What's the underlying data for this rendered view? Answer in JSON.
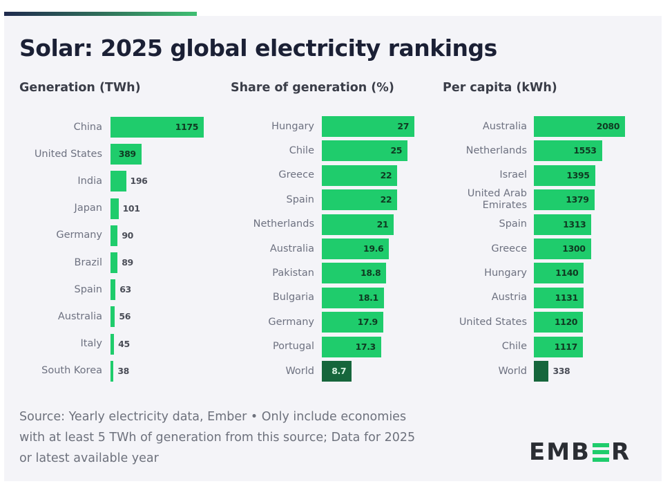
{
  "title": "Solar: 2025 global electricity rankings",
  "colors": {
    "bar": "#1fcc6c",
    "world_bar": "#16663c",
    "title": "#1b2035"
  },
  "chart_data": [
    {
      "type": "bar",
      "orientation": "horizontal",
      "title": "Generation (TWh)",
      "categories": [
        "China",
        "United States",
        "India",
        "Japan",
        "Germany",
        "Brazil",
        "Spain",
        "Australia",
        "Italy",
        "South Korea"
      ],
      "values": [
        1175,
        389,
        196,
        101,
        90,
        89,
        63,
        56,
        45,
        38
      ],
      "labels": [
        "1175",
        "389",
        "196",
        "101",
        "90",
        "89",
        "63",
        "56",
        "45",
        "38"
      ],
      "highlight": [],
      "xlim": [
        0,
        1175
      ],
      "grid": false
    },
    {
      "type": "bar",
      "orientation": "horizontal",
      "title": "Share of generation (%)",
      "categories": [
        "Hungary",
        "Chile",
        "Greece",
        "Spain",
        "Netherlands",
        "Australia",
        "Pakistan",
        "Bulgaria",
        "Germany",
        "Portugal",
        "World"
      ],
      "values": [
        27,
        25,
        22,
        22,
        21,
        19.6,
        18.8,
        18.1,
        17.9,
        17.3,
        8.7
      ],
      "labels": [
        "27",
        "25",
        "22",
        "22",
        "21",
        "19.6",
        "18.8",
        "18.1",
        "17.9",
        "17.3",
        "8.7"
      ],
      "highlight": [
        "World"
      ],
      "xlim": [
        0,
        27
      ],
      "grid": false
    },
    {
      "type": "bar",
      "orientation": "horizontal",
      "title": "Per capita (kWh)",
      "categories": [
        "Australia",
        "Netherlands",
        "Israel",
        "United Arab Emirates",
        "Spain",
        "Greece",
        "Hungary",
        "Austria",
        "United States",
        "Chile",
        "World"
      ],
      "category_lines": [
        [
          "Australia"
        ],
        [
          "Netherlands"
        ],
        [
          "Israel"
        ],
        [
          "United Arab",
          "Emirates"
        ],
        [
          "Spain"
        ],
        [
          "Greece"
        ],
        [
          "Hungary"
        ],
        [
          "Austria"
        ],
        [
          "United States"
        ],
        [
          "Chile"
        ],
        [
          "World"
        ]
      ],
      "values": [
        2080,
        1553,
        1395,
        1379,
        1313,
        1300,
        1140,
        1131,
        1120,
        1117,
        338
      ],
      "labels": [
        "2080",
        "1553",
        "1395",
        "1379",
        "1313",
        "1300",
        "1140",
        "1131",
        "1120",
        "1117",
        "338"
      ],
      "highlight": [
        "World"
      ],
      "xlim": [
        0,
        2080
      ],
      "grid": false
    }
  ],
  "footer": {
    "source_lines": [
      "Source: Yearly electricity data, Ember • Only include economies",
      "with at least 5 TWh of generation from this source; Data for 2025",
      "or latest available year"
    ],
    "logo": {
      "left": "EMB",
      "right": "R"
    }
  }
}
